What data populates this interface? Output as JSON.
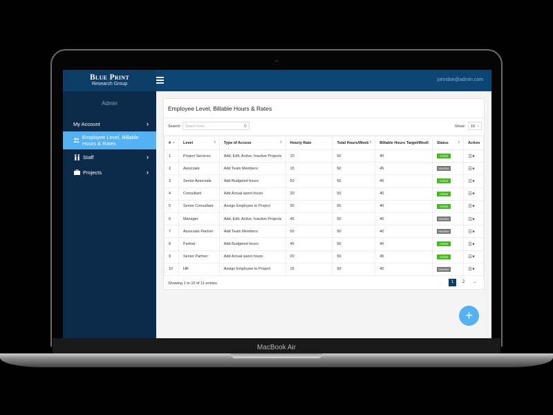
{
  "device": {
    "label": "MacBook Air"
  },
  "header": {
    "brand_main": "Blue Print",
    "brand_sub": "Research Group",
    "user_email": "johndoe@admin.com"
  },
  "sidebar": {
    "title": "Admin",
    "items": [
      {
        "label": "My Account",
        "icon": "none",
        "chevron": true
      },
      {
        "label": "Employee Level, Billable Hours & Rates",
        "line1": "Employee Level, Billable",
        "line2": "Hours & Rates",
        "icon": "users-icon",
        "active": true
      },
      {
        "label": "Staff",
        "icon": "staff-icon",
        "chevron": true
      },
      {
        "label": "Projects",
        "icon": "briefcase-icon",
        "chevron": true
      }
    ]
  },
  "main": {
    "title": "Employee Level, Billable Hours & Rates",
    "search_label": "Search:",
    "search_placeholder": "Search here..",
    "show_label": "Show:",
    "show_value": "10",
    "columns": [
      "#",
      "Level",
      "Type of Access",
      "Hourly Rate",
      "Total Hours/Week",
      "Billable Hours Target/Week",
      "Status",
      "Action"
    ],
    "rows": [
      {
        "num": "1",
        "level": "Project Services",
        "access": "Add, Edit, Active, Inactive Projects",
        "rate": "10",
        "total": "50",
        "target": "40",
        "status": "Active"
      },
      {
        "num": "2",
        "level": "Associate",
        "access": "Add Team Members",
        "rate": "15",
        "total": "50",
        "target": "45",
        "status": "Inactive"
      },
      {
        "num": "3",
        "level": "Senior Associate",
        "access": "Add Budgeted hours",
        "rate": "50",
        "total": "50",
        "target": "45",
        "status": "Active"
      },
      {
        "num": "4",
        "level": "Consultant",
        "access": "Add Actual spent hours",
        "rate": "20",
        "total": "50",
        "target": "40",
        "status": "Active"
      },
      {
        "num": "5",
        "level": "Senior Consultant",
        "access": "Assign Employee to Project",
        "rate": "30",
        "total": "50",
        "target": "40",
        "status": "Active"
      },
      {
        "num": "6",
        "level": "Manager",
        "access": "Add, Edit, Active, Inactive Projects",
        "rate": "45",
        "total": "50",
        "target": "40",
        "status": "Inactive"
      },
      {
        "num": "7",
        "level": "Associate Partner",
        "access": "Add Team Members",
        "rate": "50",
        "total": "50",
        "target": "40",
        "status": "Inactive"
      },
      {
        "num": "8",
        "level": "Partner",
        "access": "Add Budgeted hours",
        "rate": "45",
        "total": "50",
        "target": "40",
        "status": "Active"
      },
      {
        "num": "9",
        "level": "Senior Partner",
        "access": "Add Actual spent hours",
        "rate": "20",
        "total": "50",
        "target": "45",
        "status": "Active"
      },
      {
        "num": "10",
        "level": "HR",
        "access": "Assign Employee to Project",
        "rate": "15",
        "total": "50",
        "target": "40",
        "status": "Inactive"
      }
    ],
    "footer_info": "Showing 1 to 10 of 11 entries",
    "pagination": {
      "prev": "←",
      "pages": [
        "1",
        "2"
      ],
      "current": "1",
      "next": "→"
    },
    "fab_label": "+"
  },
  "colors": {
    "header": "#0b4574",
    "sidebar": "#0c2b4a",
    "sidebar_active": "#55b2f2",
    "active_badge": "#45b822",
    "inactive_badge": "#777777",
    "page_current": "#0d3d66"
  }
}
